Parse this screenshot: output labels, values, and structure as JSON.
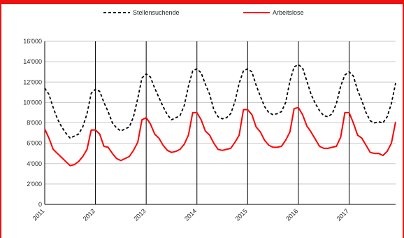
{
  "chart_data": {
    "type": "line",
    "title": "",
    "xlabel": "",
    "ylabel": "",
    "ylim": [
      0,
      16000
    ],
    "y_ticks": [
      0,
      2000,
      4000,
      6000,
      8000,
      10000,
      12000,
      14000,
      16000
    ],
    "y_tick_labels": [
      "0",
      "2'000",
      "4'000",
      "6'000",
      "8'000",
      "10'000",
      "12'000",
      "14'000",
      "16'000"
    ],
    "x_start": "2011-01",
    "x_end": "2017-12",
    "year_labels": [
      "2011",
      "2012",
      "2013",
      "2014",
      "2015",
      "2016",
      "2017"
    ],
    "grid": "horizontal lines; vertical lines at each January",
    "legend_position": "top",
    "series": [
      {
        "name": "Stellensuchende",
        "style": "dashed",
        "color": "#000000",
        "values": [
          11400,
          10800,
          9500,
          8400,
          7600,
          7000,
          6500,
          6700,
          6900,
          7600,
          8900,
          10900,
          11300,
          11100,
          10000,
          9100,
          8000,
          7500,
          7200,
          7400,
          7600,
          8600,
          10400,
          12400,
          12800,
          12500,
          11400,
          10500,
          9600,
          8800,
          8300,
          8500,
          8700,
          9700,
          11600,
          13100,
          13300,
          12900,
          11800,
          10800,
          9300,
          8600,
          8400,
          8500,
          8900,
          10100,
          11900,
          13100,
          13300,
          13000,
          11700,
          10600,
          9600,
          9000,
          8800,
          8900,
          9100,
          10000,
          12100,
          13500,
          13700,
          13400,
          12100,
          10800,
          9900,
          9200,
          8700,
          8600,
          8900,
          9900,
          11600,
          12700,
          13000,
          12600,
          11200,
          10200,
          9000,
          8200,
          8000,
          8100,
          8000,
          8600,
          9900,
          11900
        ]
      },
      {
        "name": "Arbeitslose",
        "style": "solid",
        "color": "#ff0000",
        "values": [
          7400,
          6500,
          5400,
          5000,
          4600,
          4200,
          3800,
          3900,
          4200,
          4700,
          5400,
          7300,
          7300,
          6900,
          5700,
          5600,
          5000,
          4500,
          4300,
          4500,
          4700,
          5300,
          6100,
          8300,
          8500,
          7900,
          6900,
          6500,
          5800,
          5300,
          5100,
          5200,
          5400,
          5900,
          6800,
          9000,
          9000,
          8300,
          7200,
          6800,
          6000,
          5400,
          5300,
          5400,
          5500,
          6100,
          6800,
          9300,
          9300,
          8800,
          7600,
          7100,
          6300,
          5800,
          5600,
          5600,
          5700,
          6300,
          7100,
          9400,
          9500,
          8800,
          7700,
          7100,
          6400,
          5700,
          5500,
          5500,
          5600,
          5700,
          6600,
          9000,
          9000,
          8000,
          6800,
          6500,
          5800,
          5100,
          5000,
          5000,
          4800,
          5200,
          6000,
          8100
        ]
      }
    ]
  }
}
